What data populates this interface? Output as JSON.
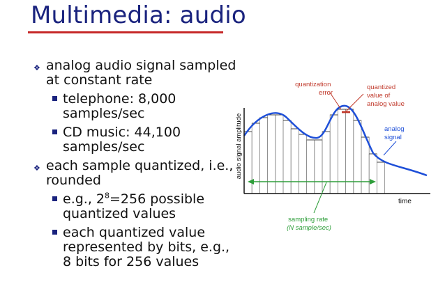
{
  "slide": {
    "title": "Multimedia: audio",
    "bullets": [
      {
        "text": "analog audio signal sampled at constant rate",
        "sub": [
          "telephone: 8,000 samples/sec",
          "CD music: 44,100 samples/sec"
        ]
      },
      {
        "text": "each sample quantized, i.e., rounded",
        "sub": [
          {
            "prefix": "e.g., 2",
            "sup": "8",
            "suffix": "=256 possible quantized values"
          },
          "each quantized value represented by bits, e.g., 8 bits for 256 values"
        ]
      }
    ]
  },
  "diagram": {
    "y_axis_label": "audio signal amplitude",
    "x_axis_label": "time",
    "labels": {
      "quantization_error_1": "quantization",
      "quantization_error_2": "error",
      "quantized_value_1": "quantized",
      "quantized_value_2": "value of",
      "quantized_value_3": "analog value",
      "analog_signal_1": "analog",
      "analog_signal_2": "signal",
      "sampling_rate_1": "sampling rate",
      "sampling_rate_2": "(N sample/sec)"
    },
    "colors": {
      "signal": "#1e4fd8",
      "annotation": "#c0392b",
      "sampling": "#2e9e3a",
      "grid": "#888888"
    }
  }
}
